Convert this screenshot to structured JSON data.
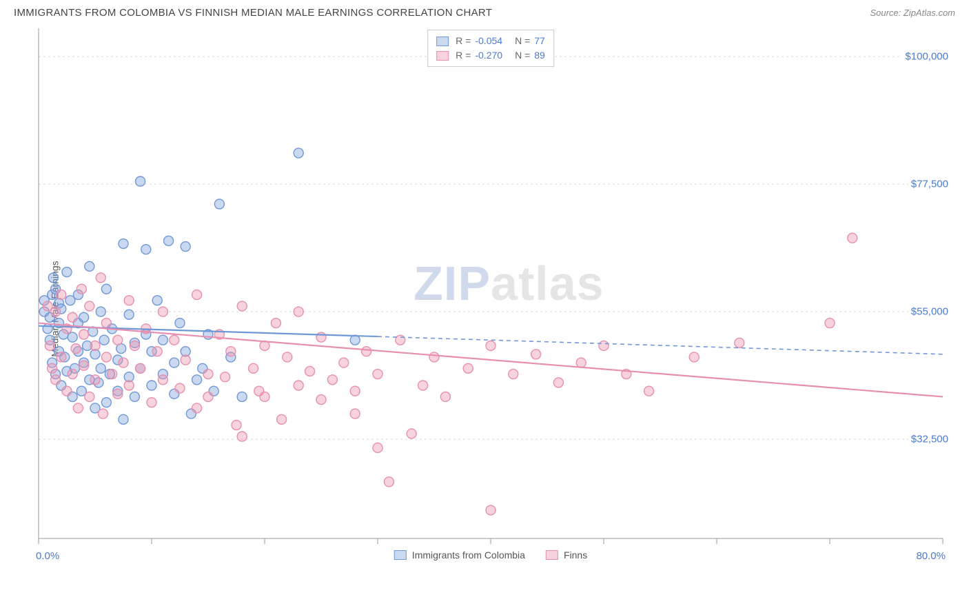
{
  "header": {
    "title": "IMMIGRANTS FROM COLOMBIA VS FINNISH MEDIAN MALE EARNINGS CORRELATION CHART",
    "source": "Source: ZipAtlas.com"
  },
  "chart": {
    "type": "scatter",
    "ylabel": "Median Male Earnings",
    "xlim": [
      0,
      80
    ],
    "ylim": [
      15000,
      105000
    ],
    "x_tick_positions": [
      0,
      10,
      20,
      30,
      40,
      50,
      60,
      70,
      80
    ],
    "x_axis_labels": {
      "left": "0.0%",
      "right": "80.0%"
    },
    "y_gridlines": [
      32500,
      55000,
      77500,
      100000
    ],
    "y_tick_labels": [
      "$32,500",
      "$55,000",
      "$77,500",
      "$100,000"
    ],
    "grid_color": "#d8d8d8",
    "axis_color": "#999999",
    "background_color": "#ffffff",
    "marker_radius": 7,
    "marker_stroke_width": 1.4,
    "series": [
      {
        "id": "colombia",
        "legend_label": "Immigrants from Colombia",
        "fill": "rgba(130,165,220,0.42)",
        "stroke": "#6f98d6",
        "R": "-0.054",
        "N": "77",
        "trend": {
          "x1": 0,
          "y1": 52500,
          "x2": 80,
          "y2": 47500,
          "solid_until_x": 30
        },
        "points": [
          [
            0.5,
            55000
          ],
          [
            0.5,
            57000
          ],
          [
            0.8,
            52000
          ],
          [
            1.0,
            54000
          ],
          [
            1.0,
            50000
          ],
          [
            1.2,
            58000
          ],
          [
            1.2,
            46000
          ],
          [
            1.3,
            61000
          ],
          [
            1.5,
            44000
          ],
          [
            1.5,
            59000
          ],
          [
            1.8,
            48000
          ],
          [
            1.8,
            53000
          ],
          [
            1.8,
            56500
          ],
          [
            2.0,
            55500
          ],
          [
            2.0,
            42000
          ],
          [
            2.2,
            51000
          ],
          [
            2.3,
            47000
          ],
          [
            2.5,
            62000
          ],
          [
            2.5,
            44500
          ],
          [
            2.8,
            57000
          ],
          [
            3.0,
            50500
          ],
          [
            3.0,
            40000
          ],
          [
            3.2,
            45000
          ],
          [
            3.5,
            48000
          ],
          [
            3.5,
            53000
          ],
          [
            3.5,
            58000
          ],
          [
            3.8,
            41000
          ],
          [
            4.0,
            46000
          ],
          [
            4.0,
            54000
          ],
          [
            4.3,
            49000
          ],
          [
            4.5,
            63000
          ],
          [
            4.5,
            43000
          ],
          [
            4.8,
            51500
          ],
          [
            5.0,
            47500
          ],
          [
            5.0,
            38000
          ],
          [
            5.3,
            42500
          ],
          [
            5.5,
            55000
          ],
          [
            5.5,
            45000
          ],
          [
            5.8,
            50000
          ],
          [
            6.0,
            39000
          ],
          [
            6.0,
            59000
          ],
          [
            6.3,
            44000
          ],
          [
            6.5,
            52000
          ],
          [
            7.0,
            46500
          ],
          [
            7.0,
            41000
          ],
          [
            7.3,
            48500
          ],
          [
            7.5,
            67000
          ],
          [
            7.5,
            36000
          ],
          [
            8.0,
            43500
          ],
          [
            8.0,
            54500
          ],
          [
            8.5,
            49500
          ],
          [
            8.5,
            40000
          ],
          [
            9.0,
            78000
          ],
          [
            9.0,
            45000
          ],
          [
            9.5,
            66000
          ],
          [
            9.5,
            51000
          ],
          [
            10.0,
            48000
          ],
          [
            10.0,
            42000
          ],
          [
            10.5,
            57000
          ],
          [
            11.0,
            44000
          ],
          [
            11.0,
            50000
          ],
          [
            11.5,
            67500
          ],
          [
            12.0,
            46000
          ],
          [
            12.0,
            40500
          ],
          [
            12.5,
            53000
          ],
          [
            13.0,
            66500
          ],
          [
            13.0,
            48000
          ],
          [
            13.5,
            37000
          ],
          [
            14.0,
            43000
          ],
          [
            14.5,
            45000
          ],
          [
            15.0,
            51000
          ],
          [
            15.5,
            41000
          ],
          [
            16.0,
            74000
          ],
          [
            17.0,
            47000
          ],
          [
            18.0,
            40000
          ],
          [
            23.0,
            83000
          ],
          [
            28.0,
            50000
          ]
        ]
      },
      {
        "id": "finns",
        "legend_label": "Finns",
        "fill": "rgba(235,150,175,0.42)",
        "stroke": "#e78fb0",
        "R": "-0.270",
        "N": "89",
        "trend": {
          "x1": 0,
          "y1": 53000,
          "x2": 80,
          "y2": 40000,
          "solid_until_x": 80
        },
        "points": [
          [
            0.8,
            56000
          ],
          [
            1.0,
            49000
          ],
          [
            1.2,
            45000
          ],
          [
            1.5,
            55000
          ],
          [
            1.5,
            43000
          ],
          [
            2.0,
            58000
          ],
          [
            2.0,
            47000
          ],
          [
            2.5,
            41000
          ],
          [
            2.5,
            52000
          ],
          [
            3.0,
            54000
          ],
          [
            3.0,
            44000
          ],
          [
            3.3,
            48500
          ],
          [
            3.5,
            38000
          ],
          [
            3.8,
            59000
          ],
          [
            4.0,
            51000
          ],
          [
            4.0,
            45500
          ],
          [
            4.5,
            56000
          ],
          [
            4.5,
            40000
          ],
          [
            5.0,
            49000
          ],
          [
            5.0,
            43000
          ],
          [
            5.5,
            61000
          ],
          [
            5.7,
            37000
          ],
          [
            6.0,
            53000
          ],
          [
            6.0,
            47000
          ],
          [
            6.5,
            44000
          ],
          [
            7.0,
            50000
          ],
          [
            7.0,
            40500
          ],
          [
            7.5,
            46000
          ],
          [
            8.0,
            57000
          ],
          [
            8.0,
            42000
          ],
          [
            8.5,
            49000
          ],
          [
            9.0,
            45000
          ],
          [
            9.5,
            52000
          ],
          [
            10.0,
            39000
          ],
          [
            10.5,
            48000
          ],
          [
            11.0,
            55000
          ],
          [
            11.0,
            43000
          ],
          [
            12.0,
            50000
          ],
          [
            12.5,
            41500
          ],
          [
            13.0,
            46500
          ],
          [
            14.0,
            58000
          ],
          [
            14.0,
            38000
          ],
          [
            15.0,
            44000
          ],
          [
            15.0,
            40000
          ],
          [
            16.0,
            51000
          ],
          [
            16.5,
            43500
          ],
          [
            17.0,
            48000
          ],
          [
            17.5,
            35000
          ],
          [
            18.0,
            56000
          ],
          [
            18.0,
            33000
          ],
          [
            19.0,
            45000
          ],
          [
            19.5,
            41000
          ],
          [
            20.0,
            49000
          ],
          [
            20.0,
            40000
          ],
          [
            21.0,
            53000
          ],
          [
            21.5,
            36000
          ],
          [
            22.0,
            47000
          ],
          [
            23.0,
            42000
          ],
          [
            23.0,
            55000
          ],
          [
            24.0,
            44500
          ],
          [
            25.0,
            39500
          ],
          [
            25.0,
            50500
          ],
          [
            26.0,
            43000
          ],
          [
            27.0,
            46000
          ],
          [
            28.0,
            41000
          ],
          [
            28.0,
            37000
          ],
          [
            29.0,
            48000
          ],
          [
            30.0,
            31000
          ],
          [
            30.0,
            44000
          ],
          [
            31.0,
            25000
          ],
          [
            32.0,
            50000
          ],
          [
            33.0,
            33500
          ],
          [
            34.0,
            42000
          ],
          [
            35.0,
            47000
          ],
          [
            36.0,
            40000
          ],
          [
            38.0,
            45000
          ],
          [
            40.0,
            20000
          ],
          [
            40.0,
            49000
          ],
          [
            42.0,
            44000
          ],
          [
            44.0,
            47500
          ],
          [
            46.0,
            42500
          ],
          [
            48.0,
            46000
          ],
          [
            50.0,
            49000
          ],
          [
            52.0,
            44000
          ],
          [
            54.0,
            41000
          ],
          [
            58.0,
            47000
          ],
          [
            62.0,
            49500
          ],
          [
            70.0,
            53000
          ],
          [
            72.0,
            68000
          ]
        ]
      }
    ],
    "legend_top": {
      "R_label": "R = ",
      "N_label": "N = "
    },
    "watermark": {
      "prefix": "ZIP",
      "suffix": "atlas"
    }
  }
}
